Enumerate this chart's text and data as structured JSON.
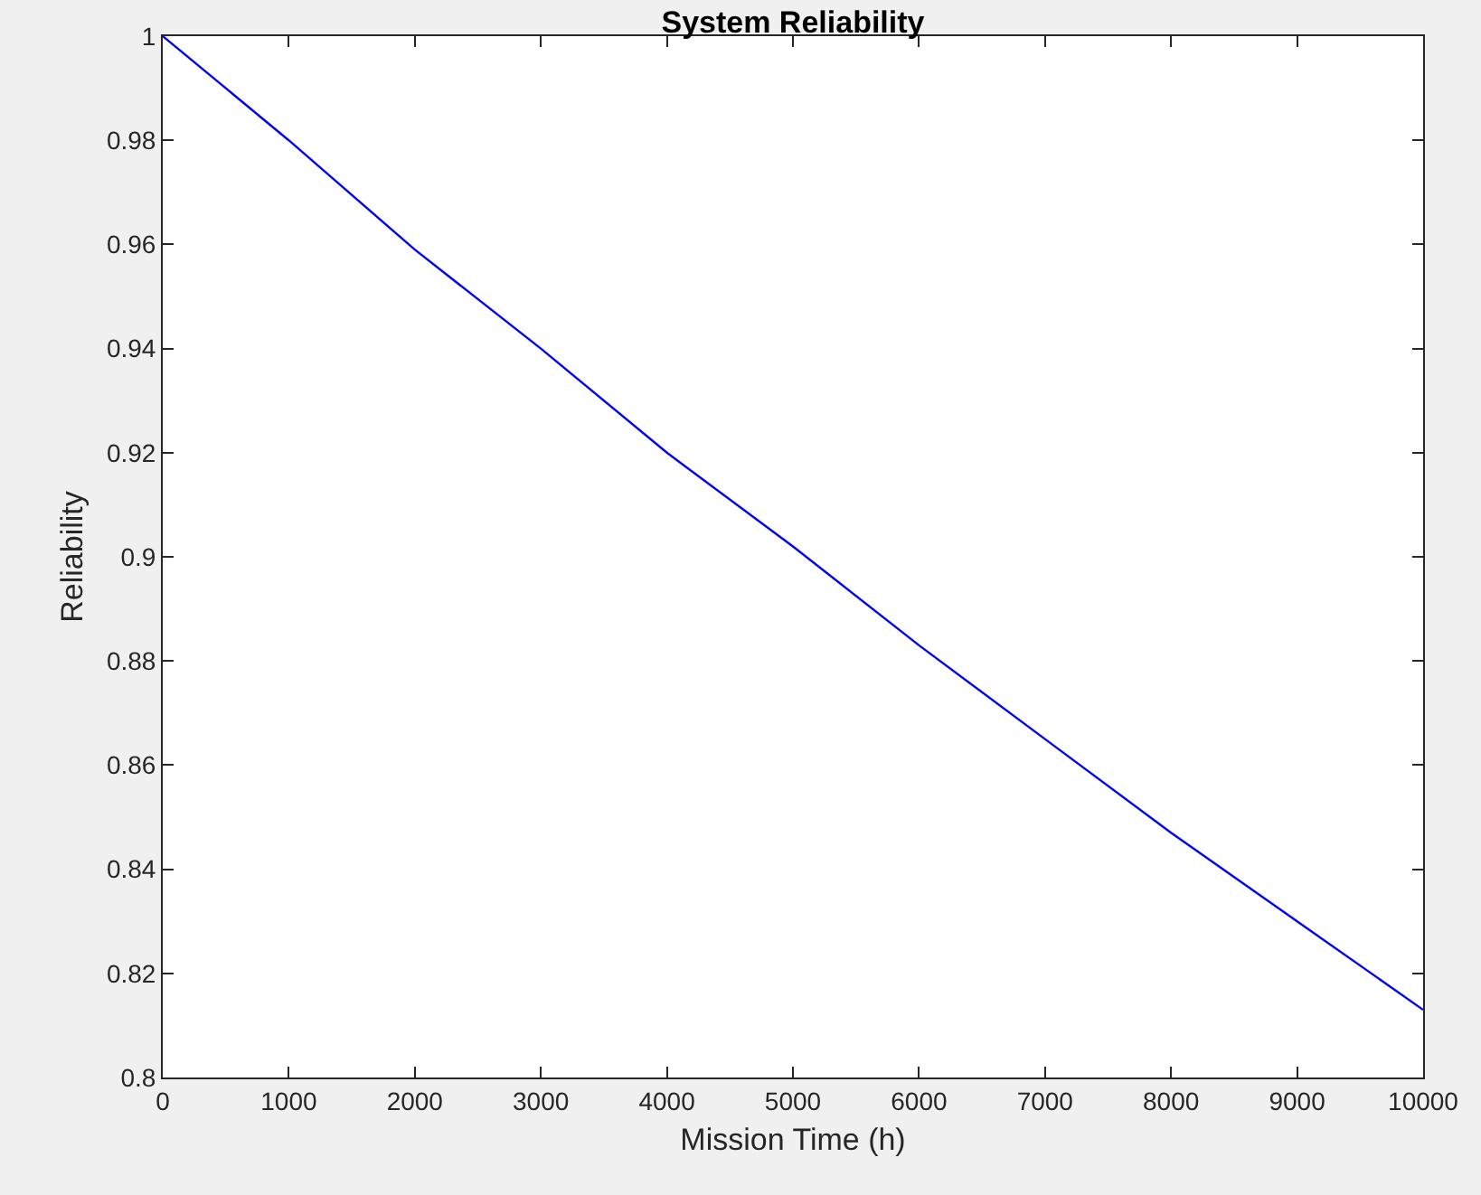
{
  "chart_data": {
    "type": "line",
    "title": "System Reliability",
    "xlabel": "Mission Time (h)",
    "ylabel": "Reliability",
    "x": [
      0,
      1000,
      2000,
      3000,
      4000,
      5000,
      6000,
      7000,
      8000,
      9000,
      10000
    ],
    "series": [
      {
        "color": "#0000ff",
        "values": [
          1.0,
          0.98,
          0.959,
          0.94,
          0.92,
          0.902,
          0.883,
          0.865,
          0.847,
          0.83,
          0.813
        ]
      }
    ],
    "xlim": [
      0,
      10000
    ],
    "xticks": [
      0,
      1000,
      2000,
      3000,
      4000,
      5000,
      6000,
      7000,
      8000,
      9000,
      10000
    ],
    "ylim": [
      0.8,
      1
    ],
    "yticks": [
      0.8,
      0.82,
      0.84,
      0.86,
      0.88,
      {
        "value": 0.9,
        "label": "0.9"
      },
      0.92,
      0.94,
      0.96,
      0.98,
      {
        "value": 1,
        "label": "1"
      }
    ],
    "marker": "none",
    "line_style": "solid"
  }
}
